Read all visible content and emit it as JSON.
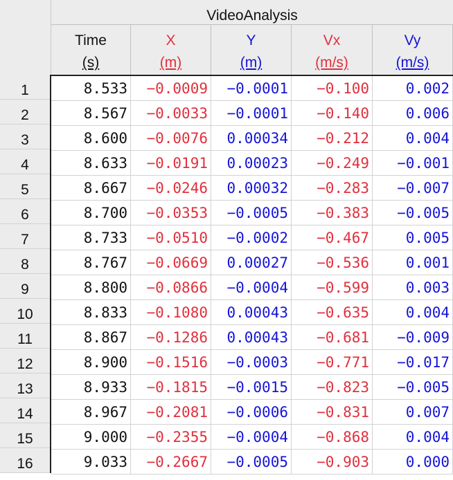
{
  "group_title": "VideoAnalysis",
  "colors": {
    "black": "#111111",
    "red": "#e0303c",
    "blue": "#1414d8"
  },
  "columns": [
    {
      "name": "Time",
      "unit": "(s)",
      "color": "#111111"
    },
    {
      "name": "X",
      "unit": "(m)",
      "color": "#e0303c"
    },
    {
      "name": "Y",
      "unit": "(m)",
      "color": "#1414d8"
    },
    {
      "name": "Vx",
      "unit": "(m/s)",
      "color": "#e0303c"
    },
    {
      "name": "Vy",
      "unit": "(m/s)",
      "color": "#1414d8"
    }
  ],
  "rows": [
    {
      "num": "1",
      "cells": [
        "8.533",
        "−0.0009",
        "−0.0001",
        "−0.100",
        "0.002"
      ]
    },
    {
      "num": "2",
      "cells": [
        "8.567",
        "−0.0033",
        "−0.0001",
        "−0.140",
        "0.006"
      ]
    },
    {
      "num": "3",
      "cells": [
        "8.600",
        "−0.0076",
        "0.00034",
        "−0.212",
        "0.004"
      ]
    },
    {
      "num": "4",
      "cells": [
        "8.633",
        "−0.0191",
        "0.00023",
        "−0.249",
        "−0.001"
      ]
    },
    {
      "num": "5",
      "cells": [
        "8.667",
        "−0.0246",
        "0.00032",
        "−0.283",
        "−0.007"
      ]
    },
    {
      "num": "6",
      "cells": [
        "8.700",
        "−0.0353",
        "−0.0005",
        "−0.383",
        "−0.005"
      ]
    },
    {
      "num": "7",
      "cells": [
        "8.733",
        "−0.0510",
        "−0.0002",
        "−0.467",
        "0.005"
      ]
    },
    {
      "num": "8",
      "cells": [
        "8.767",
        "−0.0669",
        "0.00027",
        "−0.536",
        "0.001"
      ]
    },
    {
      "num": "9",
      "cells": [
        "8.800",
        "−0.0866",
        "−0.0004",
        "−0.599",
        "0.003"
      ]
    },
    {
      "num": "10",
      "cells": [
        "8.833",
        "−0.1080",
        "0.00043",
        "−0.635",
        "0.004"
      ]
    },
    {
      "num": "11",
      "cells": [
        "8.867",
        "−0.1286",
        "0.00043",
        "−0.681",
        "−0.009"
      ]
    },
    {
      "num": "12",
      "cells": [
        "8.900",
        "−0.1516",
        "−0.0003",
        "−0.771",
        "−0.017"
      ]
    },
    {
      "num": "13",
      "cells": [
        "8.933",
        "−0.1815",
        "−0.0015",
        "−0.823",
        "−0.005"
      ]
    },
    {
      "num": "14",
      "cells": [
        "8.967",
        "−0.2081",
        "−0.0006",
        "−0.831",
        "0.007"
      ]
    },
    {
      "num": "15",
      "cells": [
        "9.000",
        "−0.2355",
        "−0.0004",
        "−0.868",
        "0.004"
      ]
    },
    {
      "num": "16",
      "cells": [
        "9.033",
        "−0.2667",
        "−0.0005",
        "−0.903",
        "0.000"
      ]
    }
  ]
}
